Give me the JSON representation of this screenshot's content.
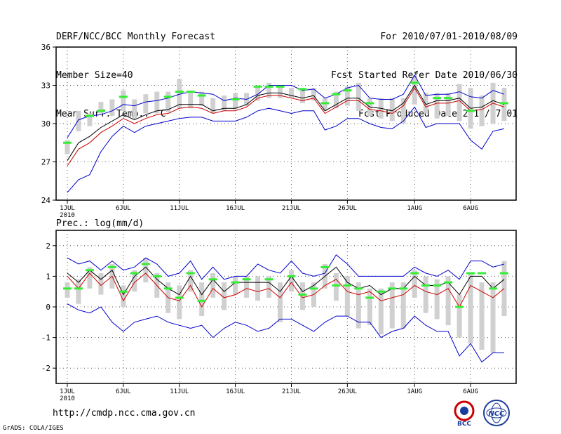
{
  "header": {
    "title": "DERF/NCC/BCC Monthly Forecast",
    "member_size": "Member Size=40",
    "variable": "Mean Surf. Temp.: °C",
    "period": "For 2010/07/01-2010/08/09",
    "fcst_started": "Fcst Started Refer Date 2010/06/30",
    "fcst_produced": "Fcst Produced Date 2010/07/01"
  },
  "footer": {
    "url": "http://cmdp.ncc.cma.gov.cn",
    "grads": "GrADS: COLA/IGES",
    "logo_bcc": "BCC",
    "logo_ncc": "NCC"
  },
  "colors": {
    "max_min": "#0000cc",
    "mean": "#000000",
    "ctrl": "#cc0000",
    "green": "#33ee33",
    "box": "#d0d0d0",
    "grid": "#555555"
  },
  "chart_data": [
    {
      "type": "line",
      "title": "Mean Surf. Temp.: °C",
      "year_label": "2010",
      "days": 40,
      "x_tick_labels": [
        {
          "day": 1,
          "label": "1JUL"
        },
        {
          "day": 6,
          "label": "6JUL"
        },
        {
          "day": 11,
          "label": "11JUL"
        },
        {
          "day": 16,
          "label": "16JUL"
        },
        {
          "day": 21,
          "label": "21JUL"
        },
        {
          "day": 26,
          "label": "26JUL"
        },
        {
          "day": 32,
          "label": "1AUG"
        },
        {
          "day": 37,
          "label": "6AUG"
        }
      ],
      "ylim": [
        24,
        36
      ],
      "y_ticks": [
        24,
        27,
        30,
        33,
        36
      ],
      "series": [
        {
          "name": "max",
          "color": "#0000cc",
          "values": [
            28.9,
            30.3,
            30.6,
            30.7,
            31.0,
            31.5,
            31.4,
            31.7,
            31.8,
            32.0,
            32.3,
            32.5,
            32.4,
            32.3,
            31.8,
            32.0,
            31.9,
            32.3,
            33.0,
            33.0,
            33.0,
            32.6,
            32.7,
            32.0,
            32.3,
            32.8,
            33.0,
            32.0,
            31.9,
            31.9,
            32.3,
            33.8,
            32.2,
            32.3,
            32.3,
            32.5,
            32.1,
            32.0,
            32.6,
            32.3
          ]
        },
        {
          "name": "ens_mean",
          "color": "#000000",
          "values": [
            27.1,
            28.5,
            29.0,
            29.7,
            30.2,
            30.7,
            30.3,
            30.7,
            31.0,
            31.1,
            31.5,
            31.5,
            31.5,
            31.0,
            31.2,
            31.2,
            31.5,
            32.2,
            32.4,
            32.4,
            32.2,
            32.0,
            32.2,
            31.0,
            31.5,
            32.0,
            32.0,
            31.3,
            31.2,
            31.0,
            31.6,
            33.0,
            31.5,
            31.8,
            31.8,
            32.0,
            31.2,
            31.3,
            31.8,
            31.5
          ]
        },
        {
          "name": "ctrl",
          "color": "#cc0000",
          "values": [
            26.7,
            28.0,
            28.5,
            29.3,
            29.8,
            30.4,
            30.0,
            30.4,
            30.7,
            30.8,
            31.2,
            31.3,
            31.2,
            30.8,
            31.0,
            31.0,
            31.3,
            32.0,
            32.2,
            32.2,
            32.0,
            31.8,
            32.0,
            30.8,
            31.3,
            31.8,
            31.8,
            31.1,
            31.0,
            30.8,
            31.4,
            32.8,
            31.3,
            31.6,
            31.6,
            31.8,
            31.0,
            31.1,
            31.6,
            31.3
          ]
        },
        {
          "name": "min",
          "color": "#0000cc",
          "values": [
            24.6,
            25.6,
            26.0,
            27.8,
            29.0,
            29.8,
            29.3,
            29.8,
            30.0,
            30.2,
            30.4,
            30.5,
            30.5,
            30.2,
            30.2,
            30.2,
            30.5,
            31.0,
            31.2,
            31.0,
            30.8,
            31.0,
            31.0,
            29.5,
            29.8,
            30.4,
            30.4,
            30.0,
            29.7,
            29.6,
            30.2,
            31.3,
            29.7,
            30.0,
            30.0,
            30.0,
            28.7,
            28.0,
            29.4,
            29.6
          ]
        }
      ],
      "green_marks": [
        28.5,
        null,
        30.6,
        31.0,
        null,
        32.1,
        null,
        null,
        null,
        32.1,
        32.5,
        32.5,
        32.2,
        null,
        null,
        31.9,
        null,
        32.9,
        32.9,
        32.9,
        null,
        32.7,
        null,
        31.6,
        32.3,
        32.6,
        null,
        31.6,
        null,
        null,
        null,
        33.2,
        null,
        32.0,
        32.0,
        null,
        31.0,
        null,
        null,
        31.6
      ],
      "boxes": [
        [
          27.6,
          28.7
        ],
        [
          29.4,
          31.0
        ],
        [
          29.8,
          30.8
        ],
        [
          30.8,
          31.7
        ],
        [
          30.6,
          31.9
        ],
        [
          31.0,
          32.6
        ],
        [
          30.4,
          31.9
        ],
        [
          30.8,
          32.3
        ],
        [
          30.8,
          32.5
        ],
        [
          30.9,
          32.5
        ],
        [
          31.2,
          33.5
        ],
        [
          31.2,
          32.5
        ],
        [
          31.4,
          32.5
        ],
        [
          30.8,
          32.0
        ],
        [
          31.0,
          32.2
        ],
        [
          31.1,
          32.4
        ],
        [
          31.4,
          32.4
        ],
        [
          31.8,
          33.0
        ],
        [
          32.0,
          33.2
        ],
        [
          32.0,
          33.0
        ],
        [
          32.0,
          32.8
        ],
        [
          31.6,
          32.8
        ],
        [
          31.8,
          32.8
        ],
        [
          31.0,
          32.0
        ],
        [
          31.2,
          32.5
        ],
        [
          31.4,
          32.9
        ],
        [
          31.0,
          33.2
        ],
        [
          30.6,
          32.0
        ],
        [
          30.4,
          32.0
        ],
        [
          30.2,
          32.0
        ],
        [
          30.0,
          32.0
        ],
        [
          31.5,
          33.8
        ],
        [
          30.8,
          32.4
        ],
        [
          30.4,
          32.4
        ],
        [
          30.6,
          32.4
        ],
        [
          30.2,
          33.1
        ],
        [
          29.6,
          32.8
        ],
        [
          29.8,
          32.2
        ],
        [
          30.0,
          33.2
        ],
        [
          30.2,
          32.8
        ]
      ]
    },
    {
      "type": "line",
      "title": "Prec.: log(mm/d)",
      "year_label": "2010",
      "days": 40,
      "x_tick_labels": [
        {
          "day": 1,
          "label": "1JUL"
        },
        {
          "day": 6,
          "label": "6JUL"
        },
        {
          "day": 11,
          "label": "11JUL"
        },
        {
          "day": 16,
          "label": "16JUL"
        },
        {
          "day": 21,
          "label": "21JUL"
        },
        {
          "day": 26,
          "label": "26JUL"
        },
        {
          "day": 32,
          "label": "1AUG"
        },
        {
          "day": 37,
          "label": "6AUG"
        }
      ],
      "ylim": [
        -2.5,
        2.5
      ],
      "y_ticks": [
        -2,
        -1,
        0,
        1,
        2
      ],
      "series": [
        {
          "name": "max",
          "color": "#0000cc",
          "values": [
            1.6,
            1.4,
            1.5,
            1.2,
            1.5,
            1.2,
            1.3,
            1.6,
            1.4,
            1.0,
            1.1,
            1.5,
            0.9,
            1.3,
            0.9,
            1.0,
            1.0,
            1.4,
            1.2,
            1.1,
            1.5,
            1.1,
            1.0,
            1.1,
            1.7,
            1.4,
            1.0,
            1.0,
            1.0,
            1.0,
            1.0,
            1.3,
            1.1,
            1.0,
            1.2,
            0.9,
            1.5,
            1.5,
            1.3,
            1.4
          ]
        },
        {
          "name": "ens_mean",
          "color": "#000000",
          "values": [
            1.1,
            0.8,
            1.2,
            0.9,
            1.2,
            0.4,
            1.0,
            1.3,
            0.9,
            0.6,
            0.4,
            1.0,
            0.4,
            0.9,
            0.5,
            0.8,
            0.8,
            0.8,
            0.8,
            0.5,
            1.0,
            0.5,
            0.7,
            1.0,
            1.3,
            0.8,
            0.6,
            0.7,
            0.4,
            0.6,
            0.6,
            1.0,
            0.7,
            0.7,
            0.8,
            0.4,
            1.0,
            1.0,
            0.6,
            0.9
          ]
        },
        {
          "name": "ctrl",
          "color": "#cc0000",
          "values": [
            1.0,
            0.6,
            1.1,
            0.7,
            1.0,
            0.2,
            0.8,
            1.1,
            0.7,
            0.3,
            0.2,
            0.7,
            0.0,
            0.6,
            0.3,
            0.4,
            0.6,
            0.5,
            0.6,
            0.3,
            0.8,
            0.3,
            0.4,
            0.7,
            0.9,
            0.5,
            0.4,
            0.5,
            0.2,
            0.3,
            0.4,
            0.7,
            0.5,
            0.4,
            0.6,
            0.0,
            0.7,
            0.5,
            0.3,
            0.6
          ]
        },
        {
          "name": "min",
          "color": "#0000cc",
          "values": [
            0.1,
            -0.1,
            -0.2,
            0.0,
            -0.5,
            -0.8,
            -0.5,
            -0.4,
            -0.3,
            -0.5,
            -0.6,
            -0.7,
            -0.6,
            -1.0,
            -0.7,
            -0.5,
            -0.6,
            -0.8,
            -0.7,
            -0.4,
            -0.4,
            -0.6,
            -0.8,
            -0.5,
            -0.3,
            -0.3,
            -0.5,
            -0.5,
            -1.0,
            -0.8,
            -0.7,
            -0.3,
            -0.6,
            -0.8,
            -0.8,
            -1.6,
            -1.2,
            -1.8,
            -1.5,
            -1.5
          ]
        }
      ],
      "green_marks": [
        0.6,
        0.6,
        1.2,
        null,
        1.3,
        0.5,
        1.1,
        1.4,
        1.0,
        0.6,
        0.3,
        1.1,
        0.2,
        0.9,
        null,
        0.8,
        0.9,
        null,
        0.9,
        null,
        1.0,
        0.4,
        0.6,
        1.3,
        0.7,
        0.7,
        0.6,
        0.3,
        0.5,
        0.6,
        0.6,
        1.1,
        0.7,
        0.7,
        0.8,
        0.0,
        1.1,
        1.1,
        0.6,
        1.1
      ],
      "boxes": [
        [
          0.3,
          0.8
        ],
        [
          0.1,
          0.9
        ],
        [
          0.6,
          1.3
        ],
        [
          0.4,
          1.1
        ],
        [
          0.6,
          1.4
        ],
        [
          0.0,
          0.7
        ],
        [
          0.5,
          1.2
        ],
        [
          0.8,
          1.6
        ],
        [
          0.3,
          1.1
        ],
        [
          -0.2,
          0.8
        ],
        [
          -0.4,
          0.7
        ],
        [
          0.5,
          1.2
        ],
        [
          -0.3,
          0.8
        ],
        [
          0.3,
          1.1
        ],
        [
          -0.1,
          0.8
        ],
        [
          0.4,
          1.0
        ],
        [
          0.3,
          1.0
        ],
        [
          0.2,
          1.0
        ],
        [
          0.3,
          1.0
        ],
        [
          -0.5,
          0.8
        ],
        [
          0.5,
          1.2
        ],
        [
          -0.1,
          0.8
        ],
        [
          0.0,
          0.8
        ],
        [
          0.6,
          1.4
        ],
        [
          0.2,
          1.1
        ],
        [
          -0.3,
          1.0
        ],
        [
          -0.7,
          0.8
        ],
        [
          -0.6,
          0.6
        ],
        [
          -0.9,
          0.6
        ],
        [
          -0.7,
          0.8
        ],
        [
          -0.7,
          0.8
        ],
        [
          0.3,
          1.2
        ],
        [
          -0.2,
          1.0
        ],
        [
          -0.4,
          0.9
        ],
        [
          -0.6,
          1.0
        ],
        [
          -1.0,
          0.4
        ],
        [
          -1.2,
          1.1
        ],
        [
          -1.4,
          0.8
        ],
        [
          -1.5,
          0.8
        ],
        [
          -0.3,
          1.5
        ]
      ]
    }
  ]
}
